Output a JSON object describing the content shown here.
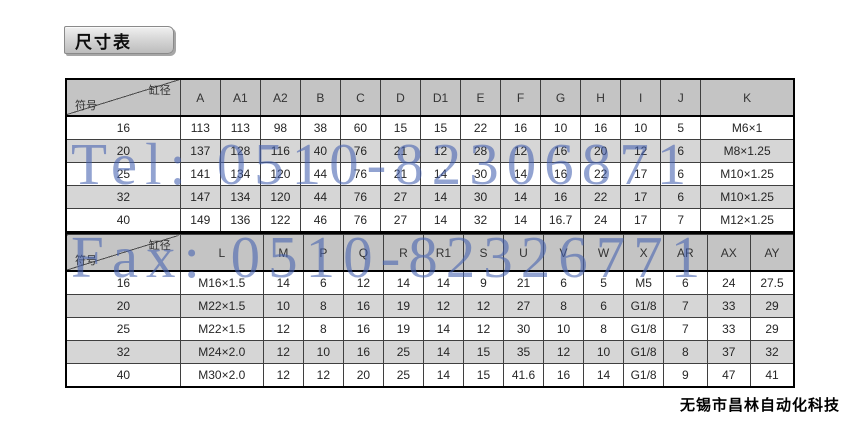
{
  "title": "尺寸表",
  "company": "无锡市昌林自动化科技",
  "watermark": {
    "tel": "Tel: 0510-82306871",
    "fax": "Fax: 0510-82326771",
    "color": "#4461B1"
  },
  "colors": {
    "header_bg": "#c4c4c4",
    "alt_row_bg": "#d6d6d6",
    "grid_line": "#3f3f3f"
  },
  "corner": {
    "top_right": "缸径",
    "bottom_left": "符号"
  },
  "chart_data": {
    "type": "table",
    "title": "尺寸表",
    "sections": [
      {
        "columns": [
          "A",
          "A1",
          "A2",
          "B",
          "C",
          "D",
          "D1",
          "E",
          "F",
          "G",
          "H",
          "I",
          "J",
          "K"
        ],
        "rows": [
          {
            "label": "16",
            "values": [
              "113",
              "113",
              "98",
              "38",
              "60",
              "15",
              "15",
              "22",
              "16",
              "10",
              "16",
              "10",
              "5",
              "M6×1"
            ]
          },
          {
            "label": "20",
            "values": [
              "137",
              "128",
              "116",
              "40",
              "76",
              "21",
              "12",
              "28",
              "12",
              "16",
              "20",
              "12",
              "6",
              "M8×1.25"
            ]
          },
          {
            "label": "25",
            "values": [
              "141",
              "134",
              "120",
              "44",
              "76",
              "21",
              "14",
              "30",
              "14",
              "16",
              "22",
              "17",
              "6",
              "M10×1.25"
            ]
          },
          {
            "label": "32",
            "values": [
              "147",
              "134",
              "120",
              "44",
              "76",
              "27",
              "14",
              "30",
              "14",
              "16",
              "22",
              "17",
              "6",
              "M10×1.25"
            ]
          },
          {
            "label": "40",
            "values": [
              "149",
              "136",
              "122",
              "46",
              "76",
              "27",
              "14",
              "32",
              "14",
              "16.7",
              "24",
              "17",
              "7",
              "M12×1.25"
            ]
          }
        ]
      },
      {
        "columns": [
          "L",
          "M",
          "P",
          "Q",
          "R",
          "R1",
          "S",
          "U",
          "V",
          "W",
          "X",
          "AR",
          "AX",
          "AY"
        ],
        "rows": [
          {
            "label": "16",
            "values": [
              "M16×1.5",
              "14",
              "6",
              "12",
              "14",
              "14",
              "9",
              "21",
              "6",
              "5",
              "M5",
              "6",
              "24",
              "27.5"
            ]
          },
          {
            "label": "20",
            "values": [
              "M22×1.5",
              "10",
              "8",
              "16",
              "19",
              "12",
              "12",
              "27",
              "8",
              "6",
              "G1/8",
              "7",
              "33",
              "29"
            ]
          },
          {
            "label": "25",
            "values": [
              "M22×1.5",
              "12",
              "8",
              "16",
              "19",
              "14",
              "12",
              "30",
              "10",
              "8",
              "G1/8",
              "7",
              "33",
              "29"
            ]
          },
          {
            "label": "32",
            "values": [
              "M24×2.0",
              "12",
              "10",
              "16",
              "25",
              "14",
              "15",
              "35",
              "12",
              "10",
              "G1/8",
              "8",
              "37",
              "32"
            ]
          },
          {
            "label": "40",
            "values": [
              "M30×2.0",
              "12",
              "12",
              "20",
              "25",
              "14",
              "15",
              "41.6",
              "16",
              "14",
              "G1/8",
              "9",
              "47",
              "41"
            ]
          }
        ]
      }
    ]
  }
}
